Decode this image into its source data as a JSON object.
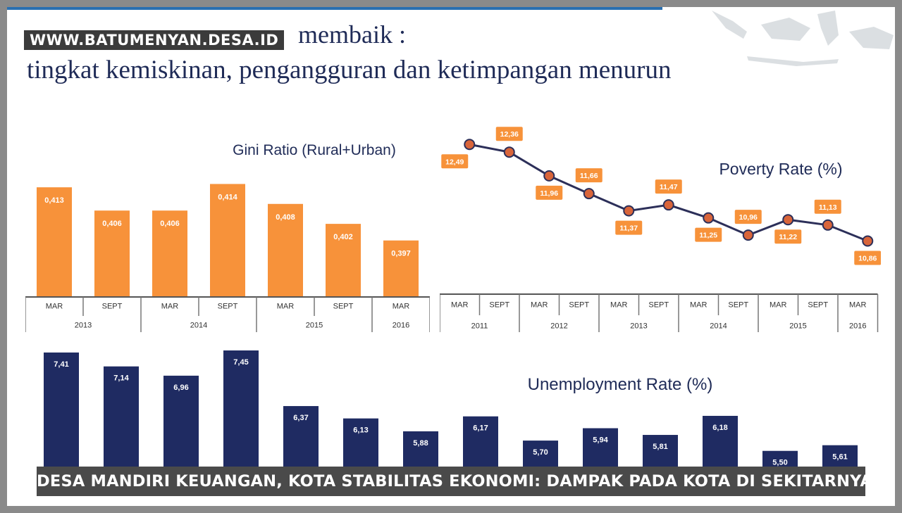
{
  "watermark": "WWW.BATUMENYAN.DESA.ID",
  "title_line1": "membaik :",
  "title_line2": "tingkat kemiskinan, pengangguran dan ketimpangan menurun",
  "banner": "DESA MANDIRI KEUANGAN, KOTA STABILITAS EKONOMI: DAMPAK PADA KOTA DI SEKITARNYA",
  "colors": {
    "orange": "#f7923a",
    "navy": "#1f2b62",
    "line": "#2c2f59",
    "title": "#1f2b57"
  },
  "chart_data": [
    {
      "type": "bar",
      "title": "Gini Ratio (Rural+Urban)",
      "categories": [
        "MAR",
        "SEPT",
        "MAR",
        "SEPT",
        "MAR",
        "SEPT",
        "MAR"
      ],
      "groups": [
        {
          "label": "2013",
          "span": 2
        },
        {
          "label": "2014",
          "span": 2
        },
        {
          "label": "2015",
          "span": 2
        },
        {
          "label": "2016",
          "span": 1
        }
      ],
      "values": [
        0.413,
        0.406,
        0.406,
        0.414,
        0.408,
        0.402,
        0.397
      ],
      "value_labels": [
        "0,413",
        "0,406",
        "0,406",
        "0,414",
        "0,408",
        "0,402",
        "0,397"
      ],
      "ylim": [
        0.38,
        0.416
      ]
    },
    {
      "type": "line",
      "title": "Poverty Rate (%)",
      "categories": [
        "MAR",
        "SEPT",
        "MAR",
        "SEPT",
        "MAR",
        "SEPT",
        "MAR",
        "SEPT",
        "MAR",
        "SEPT",
        "MAR"
      ],
      "groups": [
        {
          "label": "2011",
          "span": 2
        },
        {
          "label": "2012",
          "span": 2
        },
        {
          "label": "2013",
          "span": 2
        },
        {
          "label": "2014",
          "span": 2
        },
        {
          "label": "2015",
          "span": 2
        },
        {
          "label": "2016",
          "span": 1
        }
      ],
      "values": [
        12.49,
        12.36,
        11.96,
        11.66,
        11.37,
        11.47,
        11.25,
        10.96,
        11.22,
        11.13,
        10.86
      ],
      "value_labels": [
        "12,49",
        "12,36",
        "11,96",
        "11,66",
        "11,37",
        "11,47",
        "11,25",
        "10,96",
        "11,22",
        "11,13",
        "10,86"
      ],
      "ylim": [
        10.7,
        12.6
      ]
    },
    {
      "type": "bar",
      "title": "Unemployment Rate (%)",
      "values": [
        7.41,
        7.14,
        6.96,
        7.45,
        6.37,
        6.13,
        5.88,
        6.17,
        5.7,
        5.94,
        5.81,
        6.18,
        5.5,
        5.61
      ],
      "value_labels": [
        "7,41",
        "7,14",
        "6,96",
        "7,45",
        "6,37",
        "6,13",
        "5,88",
        "6,17",
        "5,70",
        "5,94",
        "5,81",
        "6,18",
        "5,50",
        "5,61"
      ],
      "ylim": [
        5.1,
        7.45
      ]
    }
  ]
}
